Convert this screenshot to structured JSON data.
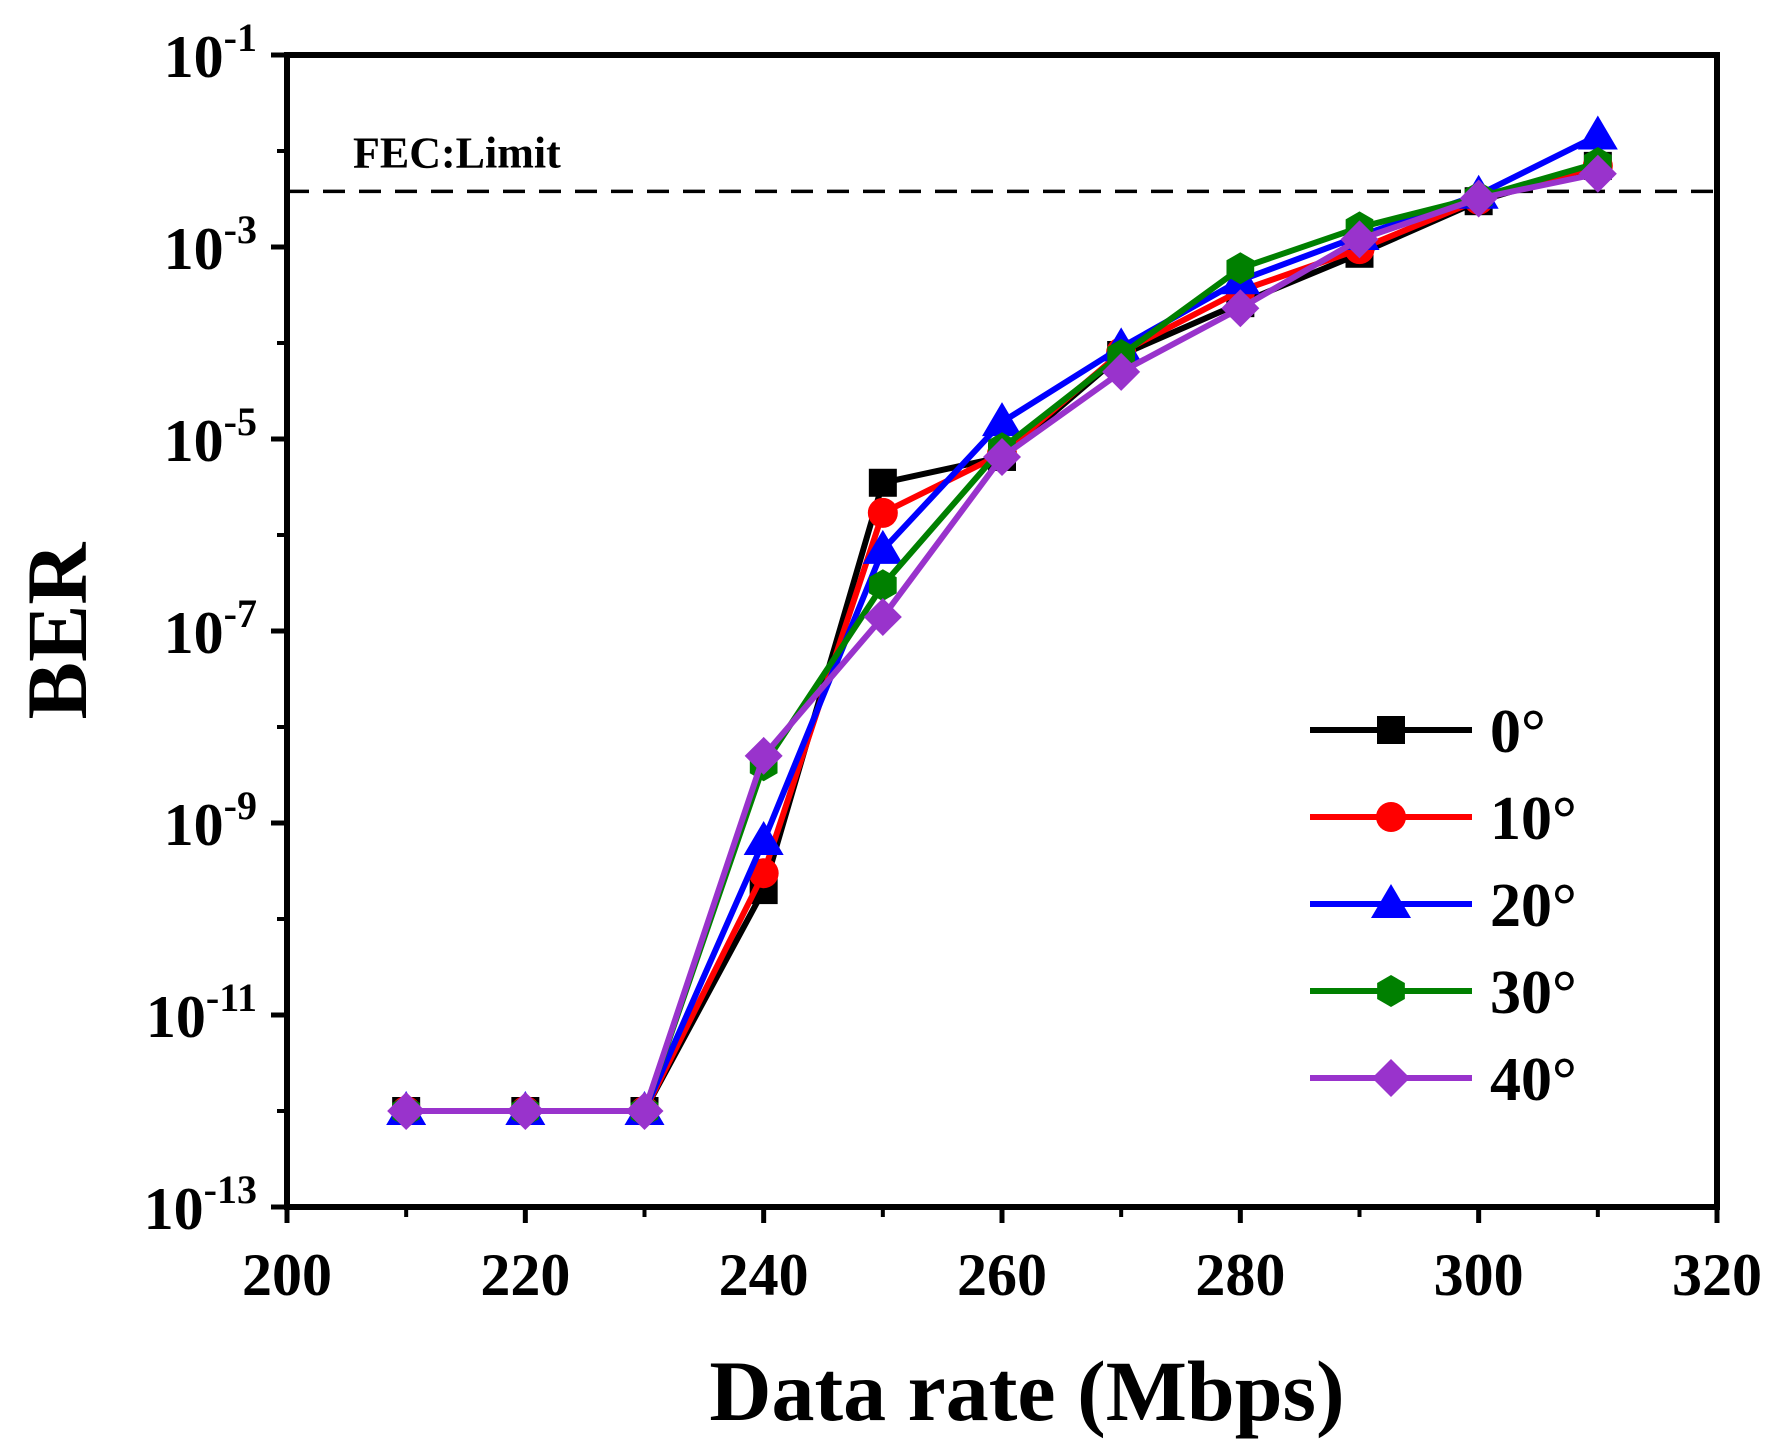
{
  "chart_data": {
    "type": "line",
    "title": "",
    "xlabel": "Data rate (Mbps)",
    "ylabel": "BER",
    "xlim": [
      200,
      320
    ],
    "ylim_exponent": [
      -13,
      -1
    ],
    "yscale": "log",
    "xticks": [
      "200",
      "220",
      "240",
      "260",
      "280",
      "300",
      "320"
    ],
    "xtick_values": [
      200,
      220,
      240,
      260,
      280,
      300,
      320
    ],
    "ytick_base": "10",
    "ytick_exponents": [
      "-13",
      "-11",
      "-9",
      "-7",
      "-5",
      "-3",
      "-1"
    ],
    "x": [
      210,
      220,
      230,
      240,
      250,
      260,
      270,
      280,
      290,
      300,
      310
    ],
    "fec_limit": {
      "label": "FEC:Limit",
      "value": 0.0038
    },
    "legend_position": "lower-right",
    "series": [
      {
        "name": "0°",
        "color": "#000000",
        "marker": "square",
        "values": [
          1e-12,
          1e-12,
          1e-12,
          2e-10,
          3.5e-06,
          6.5e-06,
          7.5e-05,
          0.00026,
          0.00085,
          0.003,
          0.007
        ]
      },
      {
        "name": "10°",
        "color": "#ff0000",
        "marker": "circle",
        "values": [
          1e-12,
          1e-12,
          1e-12,
          3e-10,
          1.7e-06,
          7e-06,
          8e-05,
          0.00035,
          0.00095,
          0.0031,
          0.007
        ]
      },
      {
        "name": "20°",
        "color": "#0000ff",
        "marker": "triangle",
        "values": [
          1e-12,
          1e-12,
          1e-12,
          6.5e-10,
          7e-07,
          1.5e-05,
          9e-05,
          0.00045,
          0.0013,
          0.0035,
          0.0145
        ]
      },
      {
        "name": "30°",
        "color": "#008000",
        "marker": "hexagon",
        "values": [
          1e-12,
          1e-12,
          1e-12,
          4e-09,
          3e-07,
          8e-06,
          7.5e-05,
          0.0006,
          0.0016,
          0.0033,
          0.0075
        ]
      },
      {
        "name": "40°",
        "color": "#9933cc",
        "marker": "diamond",
        "values": [
          1e-12,
          1e-12,
          1e-12,
          5e-09,
          1.4e-07,
          6.5e-06,
          5e-05,
          0.00023,
          0.0012,
          0.0032,
          0.0058
        ]
      }
    ]
  }
}
